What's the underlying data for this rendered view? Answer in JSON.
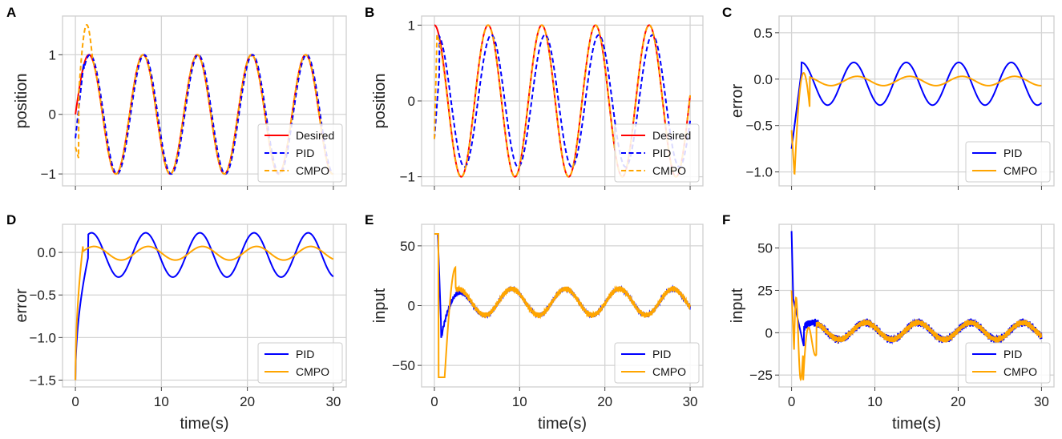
{
  "figure": {
    "colors": {
      "desired": "#ff0000",
      "pid": "#0000ff",
      "cmpo": "#ffa500"
    }
  },
  "chart_data": [
    {
      "panel": "A",
      "type": "line",
      "xlabel": "",
      "ylabel": "position",
      "xlim": [
        -1.5,
        31.5
      ],
      "ylim": [
        -1.2,
        1.65
      ],
      "xticks": [
        0,
        10,
        20,
        30
      ],
      "xtick_labels": [
        "",
        "",
        "",
        ""
      ],
      "yticks": [
        -1,
        0,
        1
      ],
      "ytick_labels": [
        "−1",
        "0",
        "1"
      ],
      "legend_position": "lower-right",
      "series": [
        {
          "name": "Desired",
          "style": "solid",
          "color": "#ff0000",
          "fn": "desired_pos"
        },
        {
          "name": "PID",
          "style": "dashed",
          "color": "#0000ff",
          "fn": "pid_pos_a"
        },
        {
          "name": "CMPO",
          "style": "dashed",
          "color": "#ffa500",
          "fn": "cmpo_pos_a"
        }
      ]
    },
    {
      "panel": "B",
      "type": "line",
      "xlabel": "",
      "ylabel": "position",
      "xlim": [
        -1.5,
        31.5
      ],
      "ylim": [
        -1.12,
        1.12
      ],
      "xticks": [
        0,
        10,
        20,
        30
      ],
      "xtick_labels": [
        "",
        "",
        "",
        ""
      ],
      "yticks": [
        -1,
        0,
        1
      ],
      "ytick_labels": [
        "−1",
        "0",
        "1"
      ],
      "legend_position": "lower-right",
      "series": [
        {
          "name": "Desired",
          "style": "solid",
          "color": "#ff0000",
          "fn": "desired_cos"
        },
        {
          "name": "PID",
          "style": "dashed",
          "color": "#0000ff",
          "fn": "pid_pos_b"
        },
        {
          "name": "CMPO",
          "style": "dashed",
          "color": "#ffa500",
          "fn": "cmpo_pos_b"
        }
      ]
    },
    {
      "panel": "C",
      "type": "line",
      "xlabel": "",
      "ylabel": "error",
      "xlim": [
        -1.5,
        31.5
      ],
      "ylim": [
        -1.15,
        0.68
      ],
      "xticks": [
        0,
        10,
        20,
        30
      ],
      "xtick_labels": [
        "",
        "",
        "",
        ""
      ],
      "yticks": [
        -1.0,
        -0.5,
        0.0,
        0.5
      ],
      "ytick_labels": [
        "−1.0",
        "−0.5",
        "0.0",
        "0.5"
      ],
      "legend_position": "lower-right",
      "series": [
        {
          "name": "PID",
          "style": "solid",
          "color": "#0000ff",
          "fn": "pid_err_c"
        },
        {
          "name": "CMPO",
          "style": "solid",
          "color": "#ffa500",
          "fn": "cmpo_err_c"
        }
      ]
    },
    {
      "panel": "D",
      "type": "line",
      "xlabel": "time(s)",
      "ylabel": "error",
      "xlim": [
        -1.5,
        31.5
      ],
      "ylim": [
        -1.58,
        0.33
      ],
      "xticks": [
        0,
        10,
        20,
        30
      ],
      "xtick_labels": [
        "0",
        "10",
        "20",
        "30"
      ],
      "yticks": [
        -1.5,
        -1.0,
        -0.5,
        0.0
      ],
      "ytick_labels": [
        "−1.5",
        "−1.0",
        "−0.5",
        "0.0"
      ],
      "legend_position": "lower-right",
      "series": [
        {
          "name": "PID",
          "style": "solid",
          "color": "#0000ff",
          "fn": "pid_err_d"
        },
        {
          "name": "CMPO",
          "style": "solid",
          "color": "#ffa500",
          "fn": "cmpo_err_d"
        }
      ]
    },
    {
      "panel": "E",
      "type": "line",
      "xlabel": "time(s)",
      "ylabel": "input",
      "xlim": [
        -1.5,
        31.5
      ],
      "ylim": [
        -68,
        68
      ],
      "xticks": [
        0,
        10,
        20,
        30
      ],
      "xtick_labels": [
        "0",
        "10",
        "20",
        "30"
      ],
      "yticks": [
        -50,
        0,
        50
      ],
      "ytick_labels": [
        "−50",
        "0",
        "50"
      ],
      "legend_position": "lower-right",
      "series": [
        {
          "name": "PID",
          "style": "solid",
          "color": "#0000ff",
          "fn": "pid_in_e"
        },
        {
          "name": "CMPO",
          "style": "solid",
          "color": "#ffa500",
          "fn": "cmpo_in_e"
        }
      ]
    },
    {
      "panel": "F",
      "type": "line",
      "xlabel": "time(s)",
      "ylabel": "input",
      "xlim": [
        -1.5,
        31.5
      ],
      "ylim": [
        -32,
        64
      ],
      "xticks": [
        0,
        10,
        20,
        30
      ],
      "xtick_labels": [
        "0",
        "10",
        "20",
        "30"
      ],
      "yticks": [
        -25,
        0,
        25,
        50
      ],
      "ytick_labels": [
        "−25",
        "0",
        "25",
        "50"
      ],
      "legend_position": "lower-right",
      "series": [
        {
          "name": "PID",
          "style": "solid",
          "color": "#0000ff",
          "fn": "pid_in_f"
        },
        {
          "name": "CMPO",
          "style": "solid",
          "color": "#ffa500",
          "fn": "cmpo_in_f"
        }
      ]
    }
  ]
}
